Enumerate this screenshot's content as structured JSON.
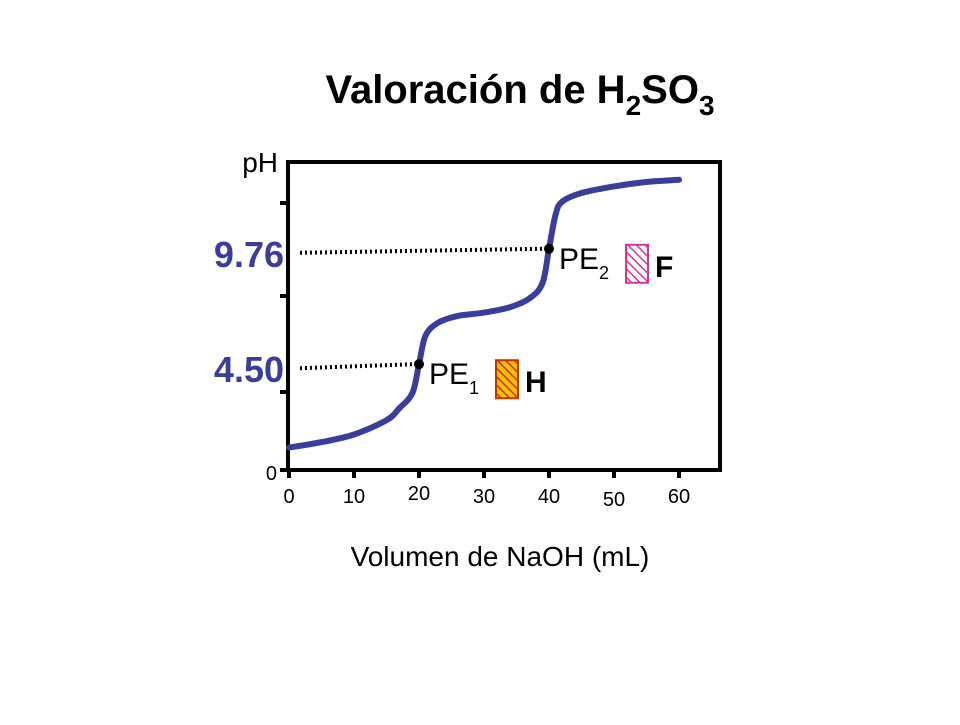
{
  "chart_data": {
    "type": "line",
    "title": {
      "prefix": "Valoración de H",
      "sub1": "2",
      "middle": "SO",
      "sub2": "3"
    },
    "xlabel": "Volumen de NaOH (mL)",
    "ylabel": "pH",
    "xlim": [
      0,
      60
    ],
    "x_ticks": [
      {
        "value": 0,
        "label": "0"
      },
      {
        "value": 10,
        "label": "10"
      },
      {
        "value": 20,
        "label": "20"
      },
      {
        "value": 30,
        "label": "30"
      },
      {
        "value": 40,
        "label": "40"
      },
      {
        "value": 50,
        "label": "50"
      },
      {
        "value": 60,
        "label": "60"
      }
    ],
    "y_zero_label": "0",
    "grid": false,
    "curve_color": "#3a3d99",
    "highlight_color": "#3a3d99",
    "series": [
      {
        "x": [
          0,
          5,
          10,
          15,
          17,
          19,
          20,
          21,
          23,
          26,
          30,
          34,
          37,
          39,
          40,
          41,
          42,
          45,
          50,
          55,
          60
        ],
        "y": [
          0.7,
          0.95,
          1.3,
          1.95,
          2.5,
          3.2,
          4.5,
          5.8,
          6.4,
          6.7,
          6.85,
          7.1,
          7.5,
          8.2,
          9.76,
          11.3,
          11.9,
          12.3,
          12.6,
          12.8,
          12.9
        ]
      }
    ],
    "equivalence_points": [
      {
        "label": "PE",
        "sub": "1",
        "x": 20,
        "y": 4.5,
        "value_label": "4.50",
        "indicator": "H",
        "swatch_color": "#cc3300",
        "swatch_bg": "#f7c300"
      },
      {
        "label": "PE",
        "sub": "2",
        "x": 40,
        "y": 9.76,
        "value_label": "9.76",
        "indicator": "F",
        "swatch_color": "#e0338f",
        "swatch_bg": "#ffffff"
      }
    ]
  }
}
